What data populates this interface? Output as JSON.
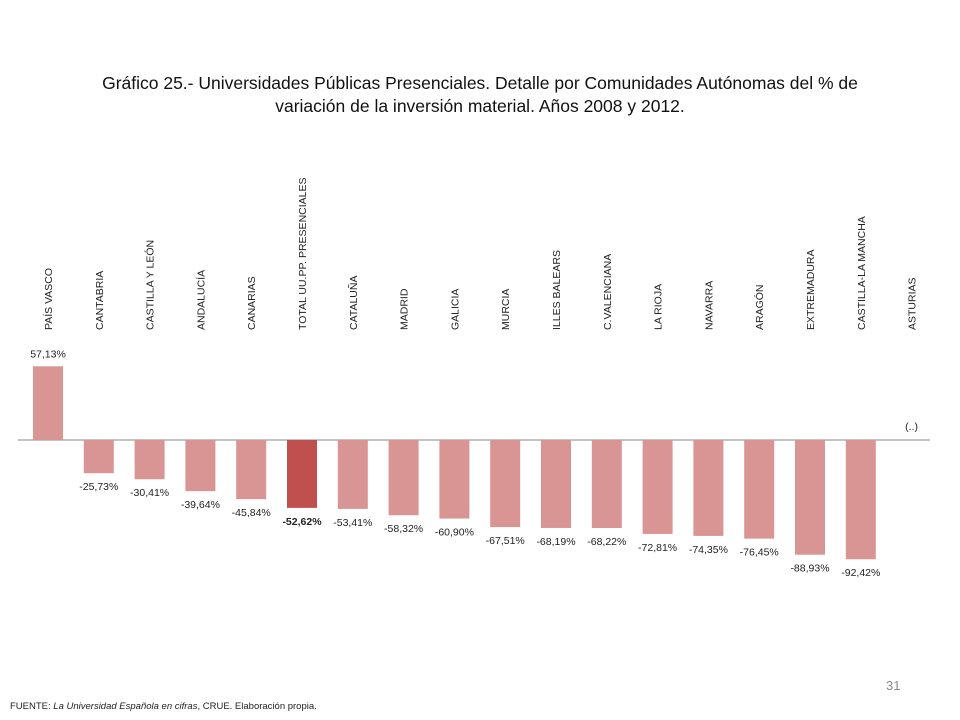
{
  "title_line1": "Gráfico 25.- Universidades Públicas Presenciales. Detalle por Comunidades Autónomas del % de",
  "title_line2": "variación de la inversión material. Años 2008 y 2012.",
  "source_prefix": "FUENTE: ",
  "source_italic": "La Universidad Española en cifras",
  "source_suffix": ", CRUE. Elaboración propia.",
  "page_number": "31",
  "colors": {
    "bar": "#d99594",
    "highlight": "#c0504d",
    "axis": "#888888"
  },
  "chart_data": {
    "type": "bar",
    "categories": [
      "PAÍS VASCO",
      "CANTABRIA",
      "CASTILLA Y LEÓN",
      "ANDALUCÍA",
      "CANARIAS",
      "TOTAL UU.PP. PRESENCIALES",
      "CATALUÑA",
      "MADRID",
      "GALICIA",
      "MURCIA",
      "ILLES BALEARS",
      "C.VALENCIANA",
      "LA RIOJA",
      "NAVARRA",
      "ARAGÓN",
      "EXTREMADURA",
      "CASTILLA-LA MANCHA",
      "ASTURIAS"
    ],
    "values": [
      57.13,
      -25.73,
      -30.41,
      -39.64,
      -45.84,
      -52.62,
      -53.41,
      -58.32,
      -60.9,
      -67.51,
      -68.19,
      -68.22,
      -72.81,
      -74.35,
      -76.45,
      -88.93,
      -92.42,
      null
    ],
    "labels": [
      "57,13%",
      "-25,73%",
      "-30,41%",
      "-39,64%",
      "-45,84%",
      "-52,62%",
      "-53,41%",
      "-58,32%",
      "-60,90%",
      "-67,51%",
      "-68,19%",
      "-68,22%",
      "-72,81%",
      "-74,35%",
      "-76,45%",
      "-88,93%",
      "-92,42%",
      "(..)"
    ],
    "highlight_index": 5,
    "ylim": [
      -100,
      60
    ],
    "grid": false,
    "legend": "none"
  }
}
